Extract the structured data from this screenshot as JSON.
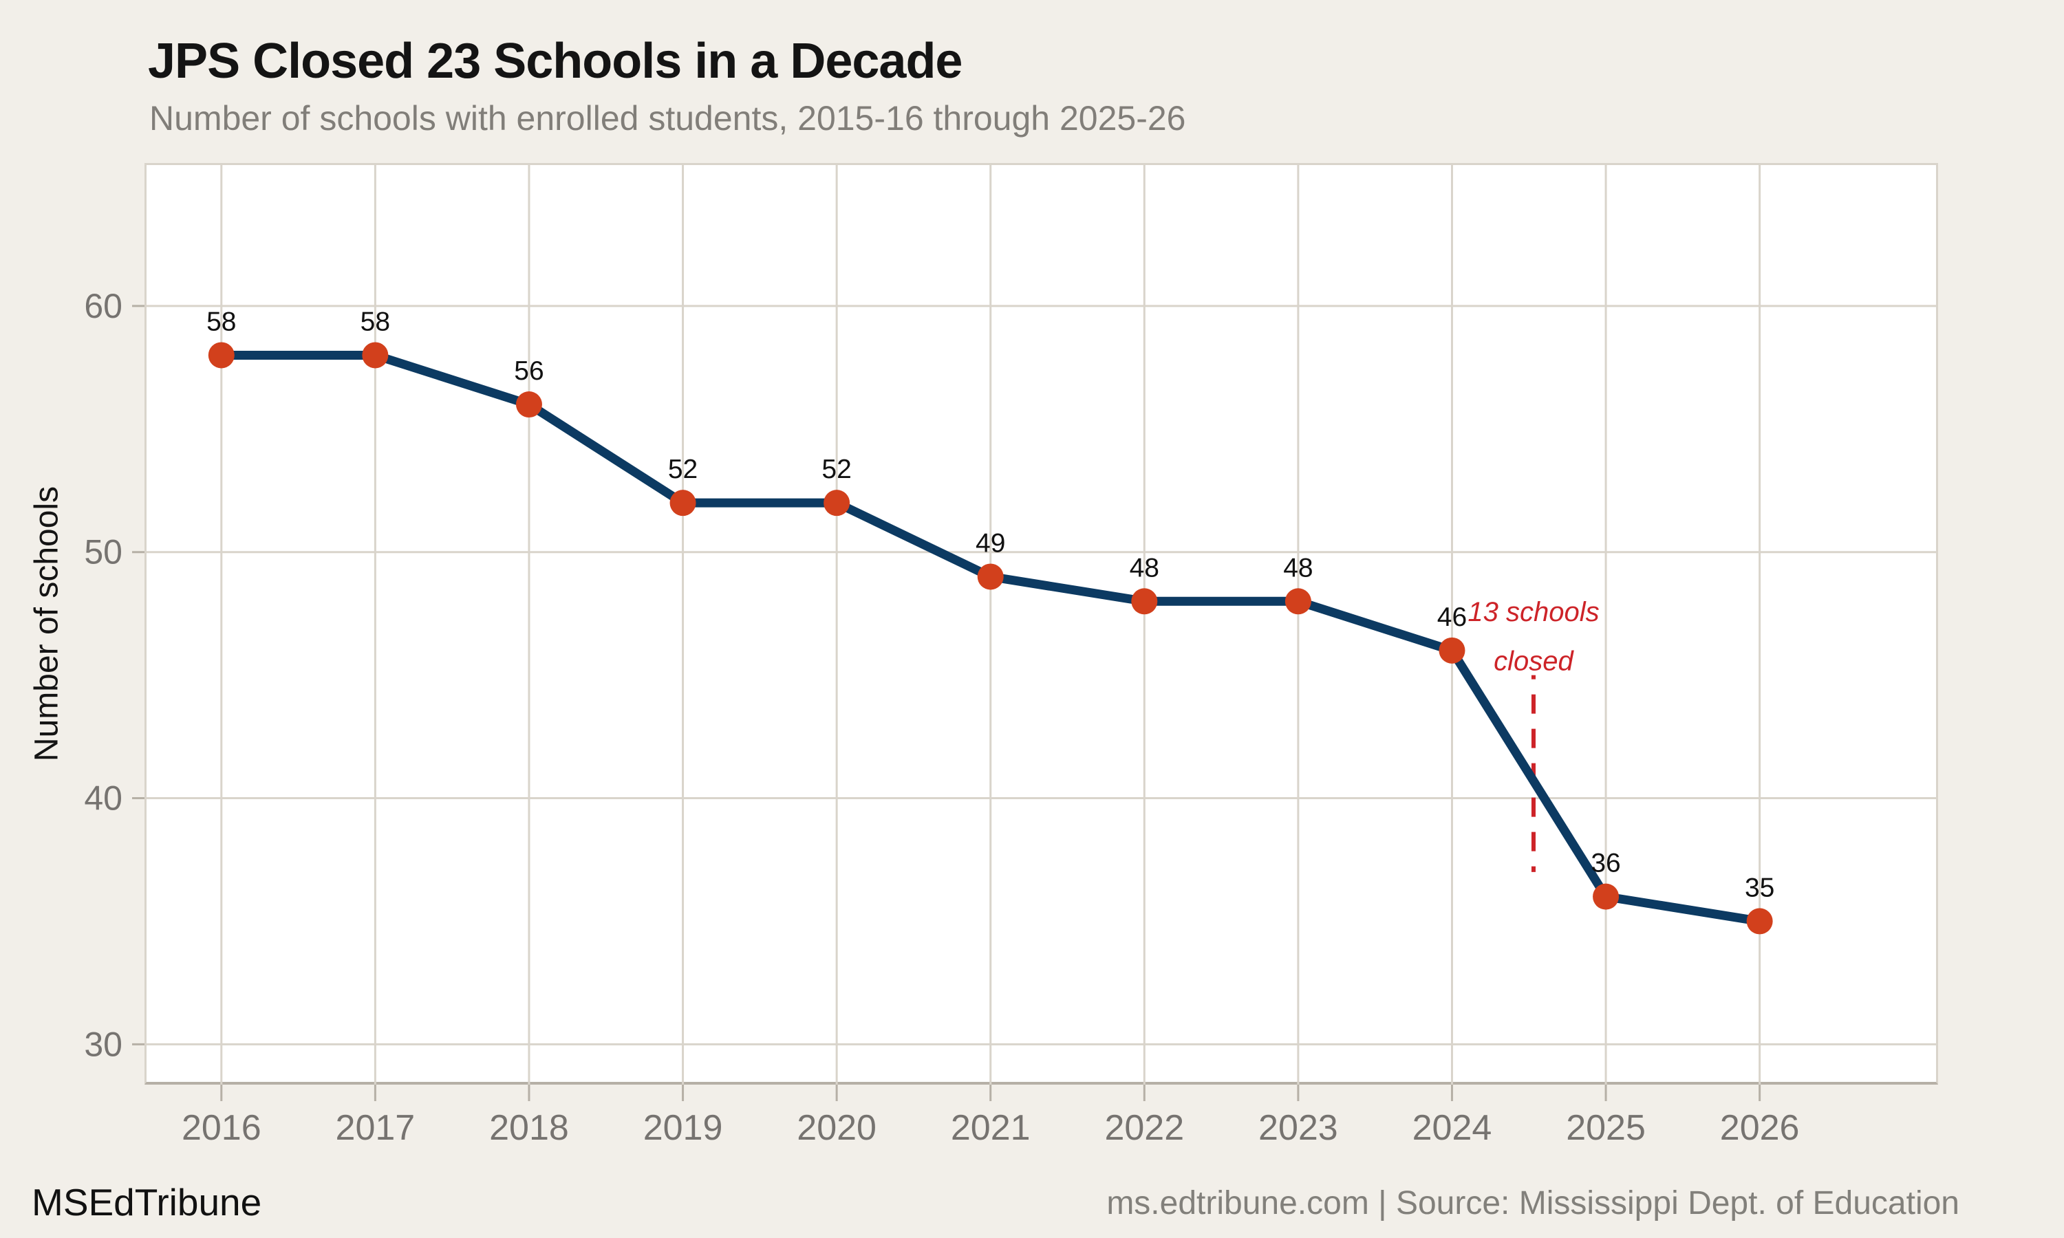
{
  "header": {
    "title": "JPS Closed 23 Schools in a Decade",
    "subtitle": "Number of schools with enrolled students, 2015-16 through 2025-26"
  },
  "chart_data": {
    "type": "line",
    "title": "JPS Closed 23 Schools in a Decade",
    "subtitle": "Number of schools with enrolled students, 2015-16 through 2025-26",
    "x": [
      2016,
      2017,
      2018,
      2019,
      2020,
      2021,
      2022,
      2023,
      2024,
      2025,
      2026
    ],
    "x_tick_labels": [
      "2016",
      "2017",
      "2018",
      "2019",
      "2020",
      "2021",
      "2022",
      "2023",
      "2024",
      "2025",
      "2026"
    ],
    "values": [
      58,
      58,
      56,
      52,
      52,
      49,
      48,
      48,
      46,
      36,
      35
    ],
    "point_labels": [
      "58",
      "58",
      "56",
      "52",
      "52",
      "49",
      "48",
      "48",
      "46",
      "36",
      "35"
    ],
    "xlabel": "",
    "ylabel": "Number of schools",
    "yticks": [
      30,
      40,
      50,
      60
    ],
    "y_tick_labels": [
      "30",
      "40",
      "50",
      "60"
    ],
    "ylim": [
      28.36,
      65.81
    ],
    "xlim": [
      2015.5,
      2027.16
    ],
    "grid": true,
    "legend": "none",
    "annotation": {
      "lines": [
        "13 schools",
        "closed"
      ],
      "x": 2024.53,
      "text_y": [
        47.2,
        45.2
      ],
      "line_y": [
        45.0,
        37.0
      ]
    },
    "colors": {
      "line": "#0c3a62",
      "point": "#d2401c",
      "grid": "#d9d4cb",
      "axis": "#b6b0a6",
      "tick_label": "#767370",
      "data_label": "#111111",
      "annotation": "#cd2328",
      "panel_bg": "#ffffff",
      "page_bg": "#f2efe9"
    }
  },
  "footer": {
    "left": "MSEdTribune",
    "right": "ms.edtribune.com | Source: Mississippi Dept. of Education"
  }
}
